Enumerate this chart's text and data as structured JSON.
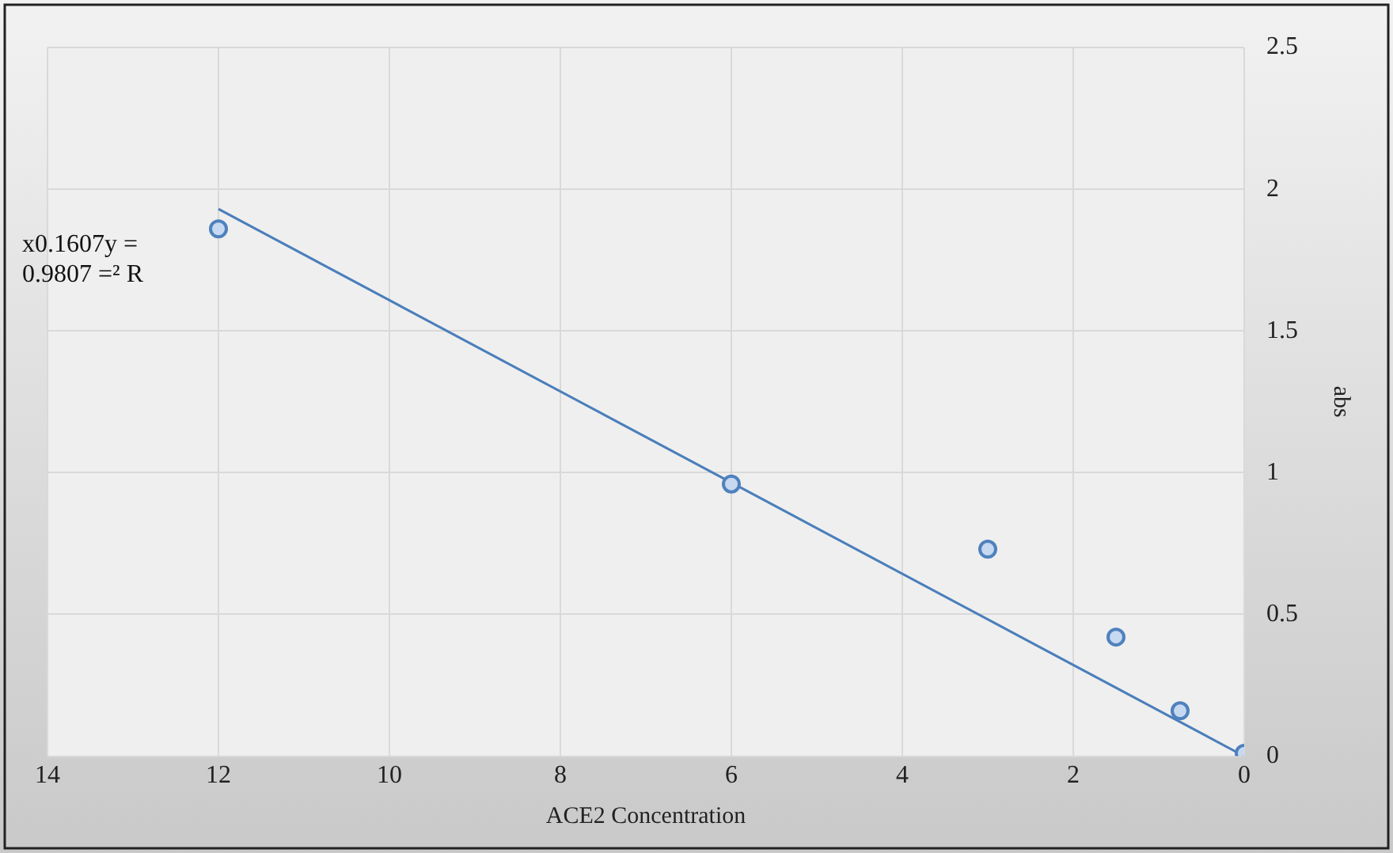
{
  "chart_data": {
    "type": "scatter",
    "xlabel": "ACE2 Concentration",
    "ylabel": "abs",
    "annotations": [
      "x0.1607y =",
      "0.9807 =² R"
    ],
    "series": [
      {
        "color": "#4f81bd",
        "x": [
          12,
          6,
          3,
          1.5,
          0.75,
          0
        ],
        "values": [
          1.86,
          0.96,
          0.73,
          0.42,
          0.16,
          0.01
        ],
        "marker": "circle"
      },
      {
        "type": "line",
        "color": "#4a7ebb",
        "x": [
          12,
          0
        ],
        "values": [
          1.93,
          0
        ],
        "marker": "none",
        "line_style": "solid"
      }
    ],
    "xlim": [
      14,
      0
    ],
    "xticks": [
      14,
      12,
      10,
      8,
      6,
      4,
      2,
      0
    ],
    "ylim": [
      0,
      2.5
    ],
    "yticks": [
      0,
      0.5,
      1,
      1.5,
      2,
      2.5
    ],
    "grid": true,
    "legend": false
  }
}
